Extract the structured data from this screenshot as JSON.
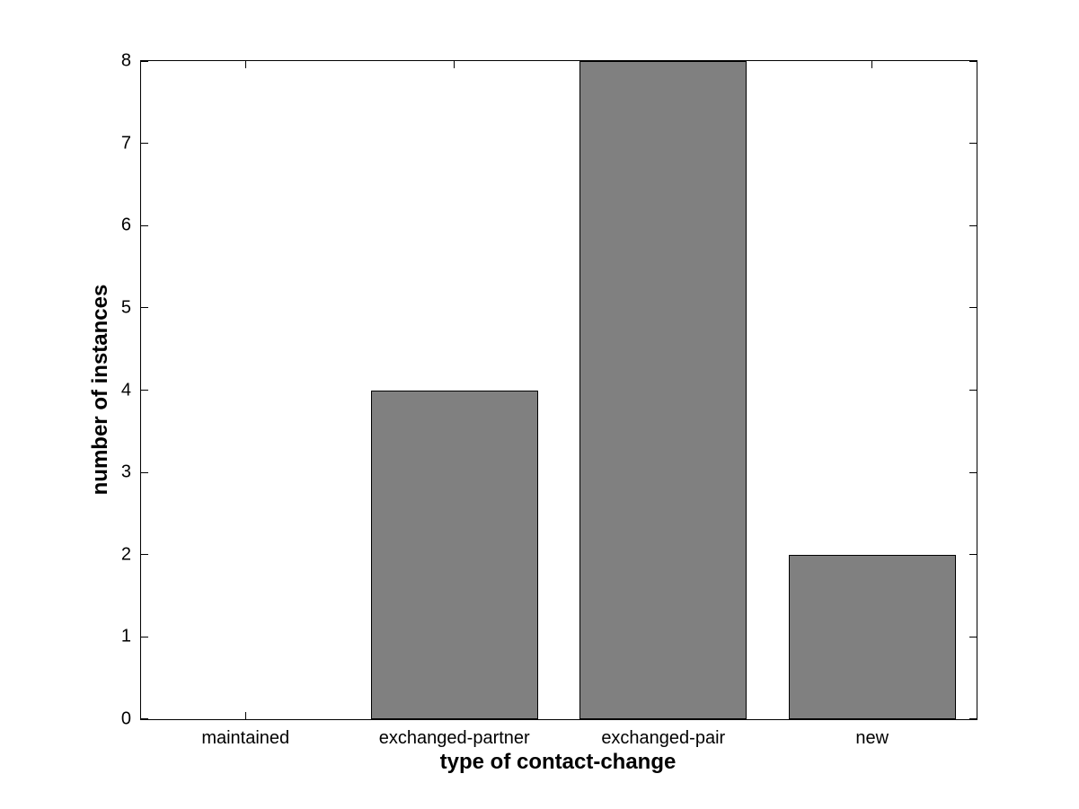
{
  "figure": {
    "background_color": "#ffffff"
  },
  "chart_data": {
    "type": "bar",
    "title": "",
    "xlabel": "type of contact-change",
    "ylabel": "number of instances",
    "categories": [
      "maintained",
      "exchanged-partner",
      "exchanged-pair",
      "new"
    ],
    "values": [
      0,
      4,
      8,
      2
    ],
    "ylim": [
      0,
      8
    ],
    "yticks": [
      0,
      1,
      2,
      3,
      4,
      5,
      6,
      7,
      8
    ],
    "bar_width_fraction": 0.8,
    "bar_color": "#808080",
    "bar_edge_color": "#000000",
    "axis_color": "#000000",
    "grid": false
  }
}
